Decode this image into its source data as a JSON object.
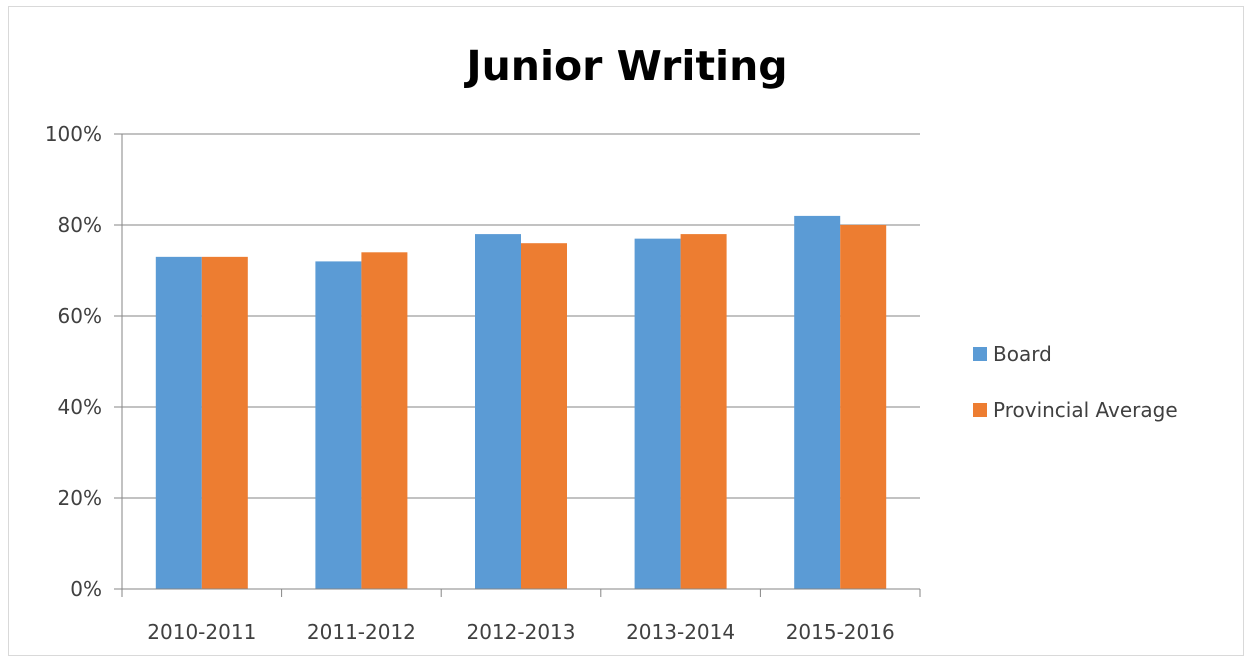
{
  "chart_data": {
    "type": "bar",
    "title": "Junior Writing",
    "xlabel": "",
    "ylabel": "",
    "categories": [
      "2010-2011",
      "2011-2012",
      "2012-2013",
      "2013-2014",
      "2015-2016"
    ],
    "series": [
      {
        "name": "Board",
        "values": [
          73,
          72,
          78,
          77,
          82
        ],
        "color": "#5B9BD5"
      },
      {
        "name": "Provincial Average",
        "values": [
          73,
          74,
          76,
          78,
          80
        ],
        "color": "#ED7D31"
      }
    ],
    "ylim": [
      0,
      100
    ],
    "yticks": [
      "0%",
      "20%",
      "40%",
      "60%",
      "80%",
      "100%"
    ],
    "ytick_values": [
      0,
      20,
      40,
      60,
      80,
      100
    ],
    "grid": true,
    "gridline_color": "#868686",
    "legend_position": "right"
  }
}
